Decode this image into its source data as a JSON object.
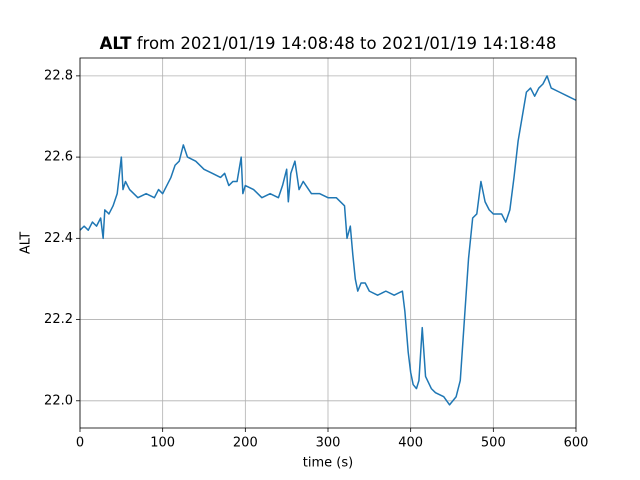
{
  "chart_data": {
    "type": "line",
    "title_bold": "ALT",
    "title": "from 2021/01/19 14:08:48 to 2021/01/19 14:18:48",
    "x_label": "time (s)",
    "y_label": "ALT",
    "xlim": [
      0,
      600
    ],
    "xticks": [
      0,
      100,
      200,
      300,
      400,
      500,
      600
    ],
    "ylim": [
      21.933,
      22.844
    ],
    "yticks": [
      {
        "value": 22.0,
        "label": "22.0"
      },
      {
        "value": 22.2,
        "label": "22.2"
      },
      {
        "value": 22.4,
        "label": "22.4"
      },
      {
        "value": 22.6,
        "label": "22.6"
      },
      {
        "value": 22.8,
        "label": "22.8"
      }
    ],
    "grid": true,
    "x": [
      0,
      5,
      10,
      15,
      20,
      25,
      28,
      30,
      35,
      40,
      45,
      50,
      52,
      55,
      60,
      70,
      80,
      90,
      95,
      100,
      105,
      110,
      115,
      120,
      125,
      130,
      140,
      150,
      160,
      170,
      175,
      180,
      185,
      190,
      195,
      197,
      200,
      210,
      220,
      230,
      240,
      245,
      250,
      252,
      255,
      260,
      265,
      270,
      280,
      290,
      300,
      310,
      320,
      323,
      327,
      330,
      333,
      336,
      340,
      345,
      350,
      360,
      370,
      380,
      390,
      393,
      397,
      400,
      403,
      407,
      410,
      414,
      418,
      425,
      430,
      440,
      447,
      455,
      460,
      465,
      470,
      475,
      480,
      485,
      490,
      495,
      500,
      510,
      515,
      520,
      525,
      530,
      535,
      540,
      545,
      550,
      555,
      560,
      565,
      570,
      580,
      590,
      600
    ],
    "series": [
      {
        "name": "ALT",
        "color": "#1f77b4",
        "values": [
          22.42,
          22.43,
          22.42,
          22.44,
          22.43,
          22.45,
          22.4,
          22.47,
          22.46,
          22.48,
          22.51,
          22.6,
          22.52,
          22.54,
          22.52,
          22.5,
          22.51,
          22.5,
          22.52,
          22.51,
          22.53,
          22.55,
          22.58,
          22.59,
          22.63,
          22.6,
          22.59,
          22.57,
          22.56,
          22.55,
          22.56,
          22.53,
          22.54,
          22.54,
          22.6,
          22.51,
          22.53,
          22.52,
          22.5,
          22.51,
          22.5,
          22.53,
          22.57,
          22.49,
          22.56,
          22.59,
          22.52,
          22.54,
          22.51,
          22.51,
          22.5,
          22.5,
          22.48,
          22.4,
          22.43,
          22.36,
          22.3,
          22.27,
          22.29,
          22.29,
          22.27,
          22.26,
          22.27,
          22.26,
          22.27,
          22.22,
          22.12,
          22.07,
          22.04,
          22.03,
          22.05,
          22.18,
          22.06,
          22.03,
          22.02,
          22.01,
          21.99,
          22.01,
          22.05,
          22.2,
          22.35,
          22.45,
          22.46,
          22.54,
          22.49,
          22.47,
          22.46,
          22.46,
          22.44,
          22.47,
          22.55,
          22.64,
          22.7,
          22.76,
          22.77,
          22.75,
          22.77,
          22.78,
          22.8,
          22.77,
          22.76,
          22.75,
          22.74
        ]
      }
    ]
  }
}
